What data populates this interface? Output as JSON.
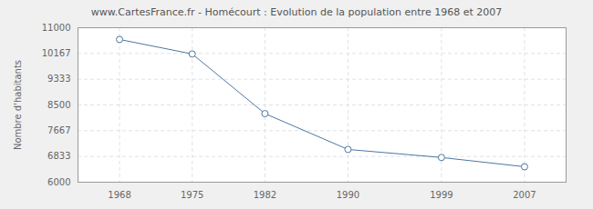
{
  "chart_data": {
    "type": "line",
    "title": "www.CartesFrance.fr - Homécourt : Evolution de la population entre 1968 et 2007",
    "y_label": "Nombre d'habitants",
    "x": [
      1968,
      1975,
      1982,
      1990,
      1999,
      2007
    ],
    "series": [
      {
        "name": "Homécourt",
        "color": "#4f76a0",
        "values": [
          10620,
          10150,
          8220,
          7060,
          6800,
          6500
        ],
        "marker": "circle"
      }
    ],
    "xlim": [
      1964,
      2011
    ],
    "xticks": [
      1968,
      1975,
      1982,
      1990,
      1999,
      2007
    ],
    "ylim": [
      6000,
      11000
    ],
    "yticks": [
      6000,
      6833,
      7667,
      8500,
      9333,
      10167,
      11000
    ],
    "grid": true
  }
}
